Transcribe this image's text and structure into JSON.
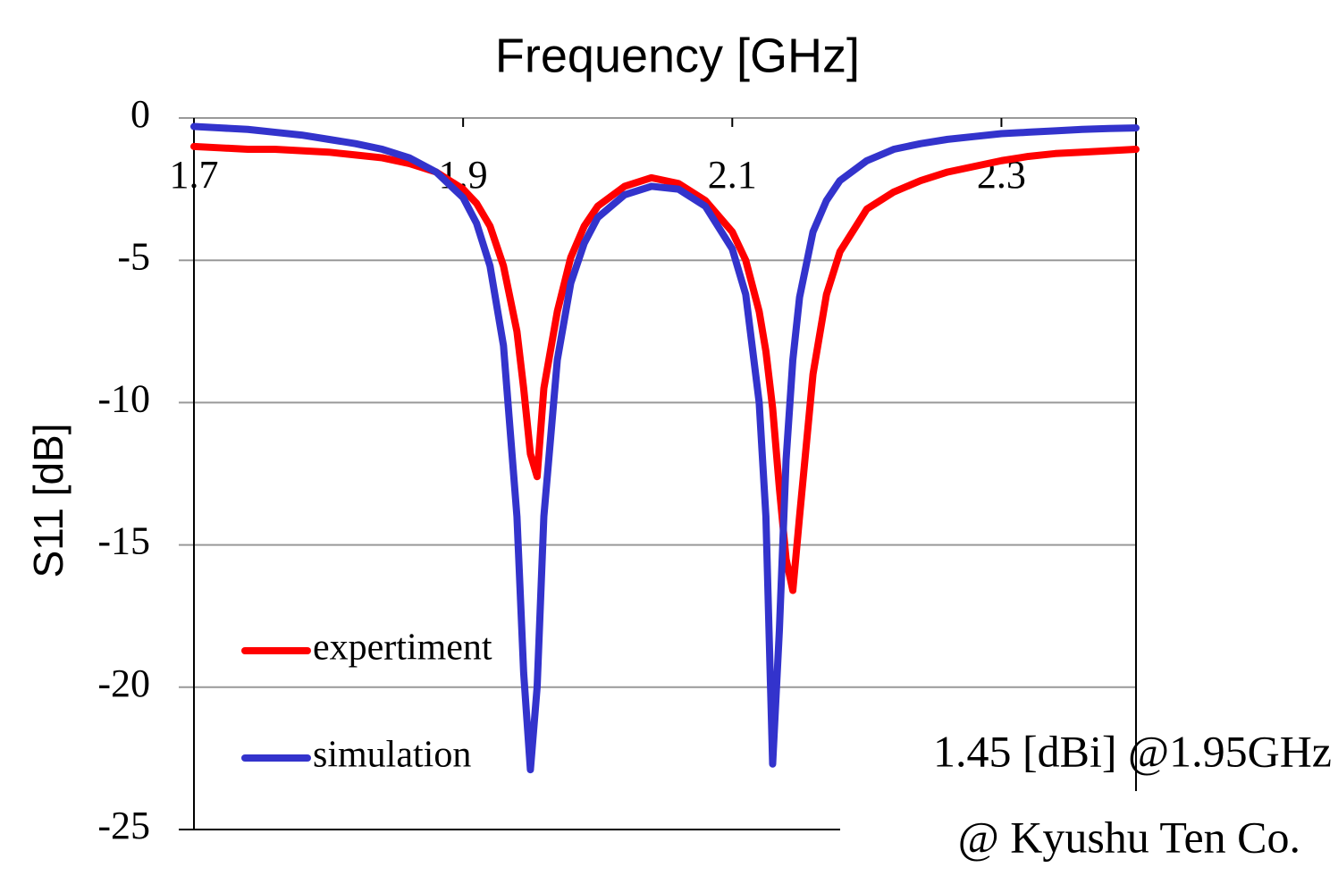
{
  "chart_data": {
    "type": "line",
    "title": "Frequency [GHz]",
    "y_label": "S11 [dB]",
    "annotations": [
      "1.45 [dBi] @1.95GHz",
      "@ Kyushu Ten Co."
    ],
    "x": [
      1.7,
      1.72,
      1.74,
      1.76,
      1.78,
      1.8,
      1.82,
      1.84,
      1.86,
      1.88,
      1.9,
      1.91,
      1.92,
      1.93,
      1.94,
      1.945,
      1.95,
      1.955,
      1.96,
      1.97,
      1.98,
      1.99,
      2.0,
      2.02,
      2.04,
      2.06,
      2.08,
      2.1,
      2.11,
      2.12,
      2.125,
      2.13,
      2.135,
      2.14,
      2.145,
      2.15,
      2.16,
      2.17,
      2.18,
      2.2,
      2.22,
      2.24,
      2.26,
      2.28,
      2.3,
      2.32,
      2.34,
      2.36,
      2.38,
      2.4
    ],
    "series": [
      {
        "name": "expertiment",
        "color": "#ff0000",
        "values": [
          -1.0,
          -1.05,
          -1.1,
          -1.1,
          -1.15,
          -1.2,
          -1.3,
          -1.4,
          -1.6,
          -1.9,
          -2.5,
          -3.0,
          -3.8,
          -5.2,
          -7.5,
          -9.5,
          -11.8,
          -12.6,
          -9.5,
          -6.8,
          -4.9,
          -3.8,
          -3.1,
          -2.4,
          -2.1,
          -2.3,
          -2.9,
          -4.0,
          -5.0,
          -6.8,
          -8.2,
          -10.2,
          -13,
          -15.5,
          -16.6,
          -14,
          -9,
          -6.2,
          -4.7,
          -3.2,
          -2.6,
          -2.2,
          -1.9,
          -1.7,
          -1.5,
          -1.35,
          -1.25,
          -1.2,
          -1.15,
          -1.1
        ]
      },
      {
        "name": "simulation",
        "color": "#3333cc",
        "values": [
          -0.3,
          -0.35,
          -0.4,
          -0.5,
          -0.6,
          -0.75,
          -0.9,
          -1.1,
          -1.4,
          -1.9,
          -2.8,
          -3.7,
          -5.2,
          -8,
          -14,
          -19.5,
          -22.9,
          -20,
          -14,
          -8.5,
          -5.8,
          -4.4,
          -3.5,
          -2.7,
          -2.4,
          -2.5,
          -3.1,
          -4.6,
          -6.2,
          -10,
          -14,
          -22.7,
          -18,
          -12,
          -8.5,
          -6.3,
          -4.0,
          -2.9,
          -2.2,
          -1.5,
          -1.1,
          -0.9,
          -0.75,
          -0.65,
          -0.55,
          -0.5,
          -0.45,
          -0.4,
          -0.37,
          -0.35
        ]
      }
    ],
    "xlim": [
      1.7,
      2.4
    ],
    "xticks": [
      1.7,
      1.9,
      2.1,
      2.3
    ],
    "ylim": [
      -25,
      0
    ],
    "yticks": [
      0,
      -5,
      -10,
      -15,
      -20,
      -25
    ],
    "grid": true
  }
}
